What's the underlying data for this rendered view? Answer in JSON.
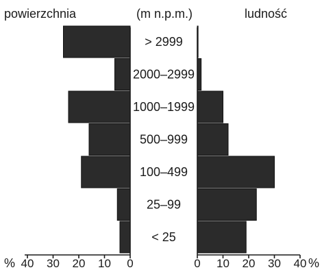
{
  "chart_data": {
    "type": "bar",
    "orientation": "horizontal-pyramid",
    "left_title": "powierzchnia",
    "center_title": "(m n.p.m.)",
    "right_title": "ludność",
    "categories": [
      "> 2999",
      "2000–2999",
      "1000–1999",
      "500–999",
      "100–499",
      "25–99",
      "< 25"
    ],
    "series": [
      {
        "name": "powierzchnia",
        "values": [
          26,
          6,
          24,
          16,
          19,
          5,
          4
        ]
      },
      {
        "name": "ludność",
        "values": [
          0.3,
          1.5,
          10,
          12,
          30,
          23,
          19
        ]
      }
    ],
    "left_ticks": [
      "40",
      "30",
      "20",
      "10",
      "0"
    ],
    "right_ticks": [
      "0",
      "10",
      "20",
      "30",
      "40"
    ],
    "left_unit": "%",
    "right_unit": "%",
    "xlim": [
      0,
      40
    ],
    "grid": false,
    "legend": "none",
    "bar_color": "#2b2b2b"
  }
}
